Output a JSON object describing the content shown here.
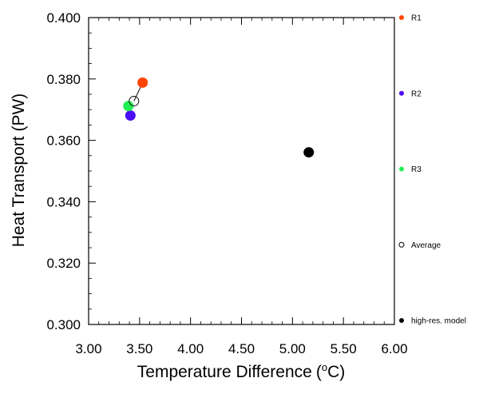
{
  "chart_data": {
    "type": "scatter",
    "title": "",
    "xlabel": "Temperature Difference",
    "xlabel_unit": "(oC)",
    "ylabel": "Heat Transport (PW)",
    "xlim": [
      3.0,
      6.0
    ],
    "ylim": [
      0.3,
      0.4
    ],
    "x_ticks": [
      "3.00",
      "3.50",
      "4.00",
      "4.50",
      "5.00",
      "5.50",
      "6.00"
    ],
    "y_ticks": [
      "0.300",
      "0.320",
      "0.340",
      "0.360",
      "0.380",
      "0.400"
    ],
    "grid": false,
    "legend_position": "right",
    "series": [
      {
        "name": "R1",
        "color": "#ff4500",
        "marker": "filled-circle",
        "x": [
          3.53
        ],
        "y": [
          0.3788
        ]
      },
      {
        "name": "R2",
        "color": "#4b0cf5",
        "marker": "filled-circle",
        "x": [
          3.41
        ],
        "y": [
          0.3681
        ]
      },
      {
        "name": "R3",
        "color": "#22ee55",
        "marker": "filled-circle",
        "x": [
          3.39
        ],
        "y": [
          0.3712
        ]
      },
      {
        "name": "Average",
        "color": "#000000",
        "marker": "open-circle",
        "x": [
          3.445
        ],
        "y": [
          0.3728
        ]
      },
      {
        "name": "high-res. model",
        "color": "#000000",
        "marker": "filled-circle",
        "x": [
          5.16
        ],
        "y": [
          0.3561
        ]
      }
    ],
    "connector": {
      "from": "R1",
      "to": "Average"
    }
  }
}
